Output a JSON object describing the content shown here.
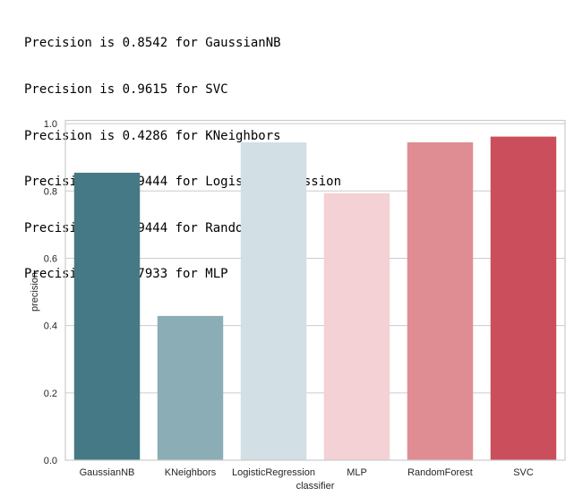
{
  "output_lines": [
    "Precision is 0.8542 for GaussianNB",
    "Precision is 0.9615 for SVC",
    "Precision is 0.4286 for KNeighbors",
    "Precision is 0.9444 for LogisticRegression",
    "Precision is 0.9444 for RandomForest",
    "Precision is 0.7933 for MLP"
  ],
  "chart_data": {
    "type": "bar",
    "categories": [
      "GaussianNB",
      "KNeighbors",
      "LogisticRegression",
      "MLP",
      "RandomForest",
      "SVC"
    ],
    "values": [
      0.8542,
      0.4286,
      0.9444,
      0.7933,
      0.9444,
      0.9615
    ],
    "colors": [
      "#457985",
      "#8badb5",
      "#d2dfe5",
      "#f4d1d5",
      "#e08c93",
      "#ca4e5b"
    ],
    "xlabel": "classifier",
    "ylabel": "precision",
    "ylim": [
      0,
      1.0096
    ],
    "yticks": [
      "0.0",
      "0.2",
      "0.4",
      "0.6",
      "0.8",
      "1.0"
    ],
    "grid": true
  }
}
